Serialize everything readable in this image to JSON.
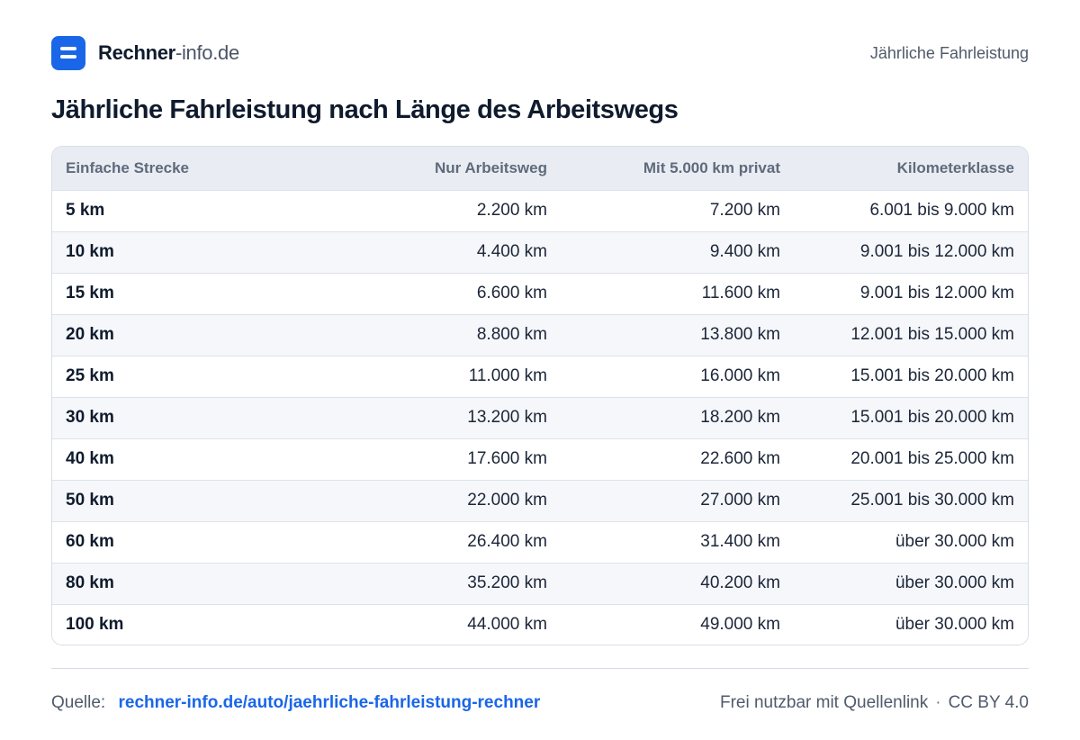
{
  "header": {
    "brand_strong": "Rechner",
    "brand_light": "-info.de",
    "right_label": "Jährliche Fahrleistung"
  },
  "title": "Jährliche Fahrleistung nach Länge des Arbeitswegs",
  "table": {
    "columns": [
      "Einfache Strecke",
      "Nur Arbeitsweg",
      "Mit 5.000 km privat",
      "Kilometerklasse"
    ],
    "rows": [
      [
        "5 km",
        "2.200 km",
        "7.200 km",
        "6.001 bis 9.000 km"
      ],
      [
        "10 km",
        "4.400 km",
        "9.400 km",
        "9.001 bis 12.000 km"
      ],
      [
        "15 km",
        "6.600 km",
        "11.600 km",
        "9.001 bis 12.000 km"
      ],
      [
        "20 km",
        "8.800 km",
        "13.800 km",
        "12.001 bis 15.000 km"
      ],
      [
        "25 km",
        "11.000 km",
        "16.000 km",
        "15.001 bis 20.000 km"
      ],
      [
        "30 km",
        "13.200 km",
        "18.200 km",
        "15.001 bis 20.000 km"
      ],
      [
        "40 km",
        "17.600 km",
        "22.600 km",
        "20.001 bis 25.000 km"
      ],
      [
        "50 km",
        "22.000 km",
        "27.000 km",
        "25.001 bis 30.000 km"
      ],
      [
        "60 km",
        "26.400 km",
        "31.400 km",
        "über 30.000 km"
      ],
      [
        "80 km",
        "35.200 km",
        "40.200 km",
        "über 30.000 km"
      ],
      [
        "100 km",
        "44.000 km",
        "49.000 km",
        "über 30.000 km"
      ]
    ]
  },
  "footer": {
    "source_label": "Quelle:",
    "source_link": "rechner-info.de/auto/jaehrliche-fahrleistung-rechner",
    "license_note": "Frei nutzbar mit Quellenlink",
    "separator": "·",
    "license": "CC BY 4.0"
  },
  "colors": {
    "accent": "#1a66e8",
    "header_row_bg": "#e9edf3",
    "stripe_bg": "#f5f7fa",
    "border": "#d9dee6"
  }
}
